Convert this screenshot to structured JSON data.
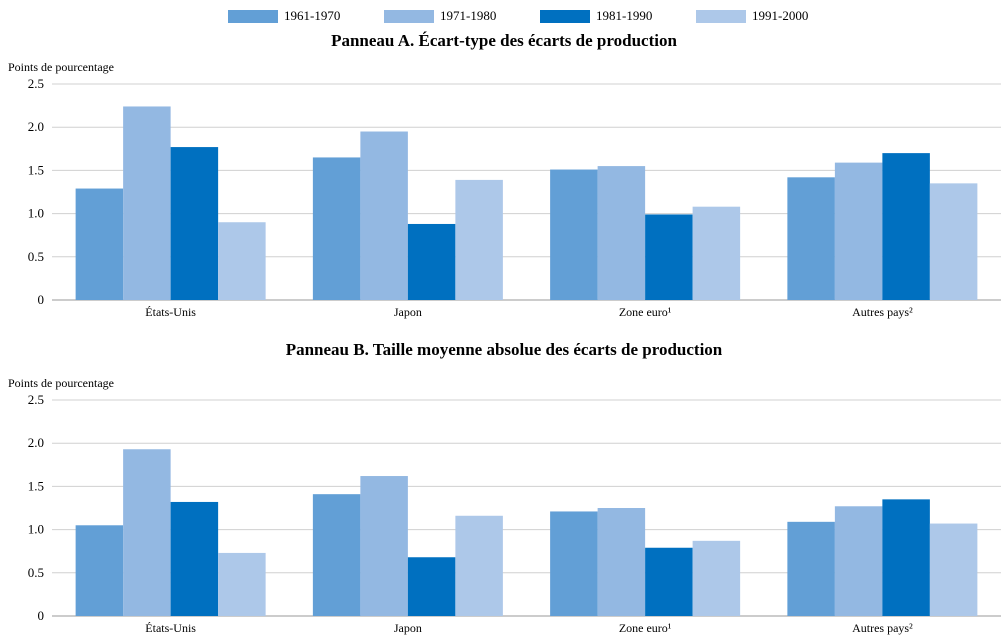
{
  "legend": [
    {
      "label": "1961-1970",
      "color": "#629FD6"
    },
    {
      "label": "1971-1980",
      "color": "#93B8E2"
    },
    {
      "label": "1981-1990",
      "color": "#0070C0"
    },
    {
      "label": "1991-2000",
      "color": "#ADC8E9"
    }
  ],
  "panels": [
    {
      "title": "Panneau A.  Écart-type des écarts de production",
      "ylabel": "Points de pourcentage"
    },
    {
      "title": "Panneau B.  Taille moyenne absolue des écarts de production",
      "ylabel": "Points de pourcentage"
    }
  ],
  "chart_data": [
    {
      "type": "bar",
      "title": "Panneau A.  Écart-type des écarts de production",
      "ylabel": "Points de pourcentage",
      "xlabel": "",
      "categories": [
        "États-Unis",
        "Japon",
        "Zone euro¹",
        "Autres pays²"
      ],
      "series": [
        {
          "name": "1961-1970",
          "values": [
            1.29,
            1.65,
            1.51,
            1.42
          ]
        },
        {
          "name": "1971-1980",
          "values": [
            2.24,
            1.95,
            1.55,
            1.59
          ]
        },
        {
          "name": "1981-1990",
          "values": [
            1.77,
            0.88,
            0.99,
            1.7
          ]
        },
        {
          "name": "1991-2000",
          "values": [
            0.9,
            1.39,
            1.08,
            1.35
          ]
        }
      ],
      "ylim": [
        0,
        2.5
      ],
      "yticks": [
        "0",
        "0.5",
        "1.0",
        "1.5",
        "2.0",
        "2.5"
      ],
      "grid": true,
      "legend": "top"
    },
    {
      "type": "bar",
      "title": "Panneau B.  Taille moyenne absolue des écarts de production",
      "ylabel": "Points de pourcentage",
      "xlabel": "",
      "categories": [
        "États-Unis",
        "Japon",
        "Zone euro¹",
        "Autres pays²"
      ],
      "series": [
        {
          "name": "1961-1970",
          "values": [
            1.05,
            1.41,
            1.21,
            1.09
          ]
        },
        {
          "name": "1971-1980",
          "values": [
            1.93,
            1.62,
            1.25,
            1.27
          ]
        },
        {
          "name": "1981-1990",
          "values": [
            1.32,
            0.68,
            0.79,
            1.35
          ]
        },
        {
          "name": "1991-2000",
          "values": [
            0.73,
            1.16,
            0.87,
            1.07
          ]
        }
      ],
      "ylim": [
        0,
        2.5
      ],
      "yticks": [
        "0",
        "0.5",
        "1.0",
        "1.5",
        "2.0",
        "2.5"
      ],
      "grid": true,
      "legend": "top"
    }
  ]
}
